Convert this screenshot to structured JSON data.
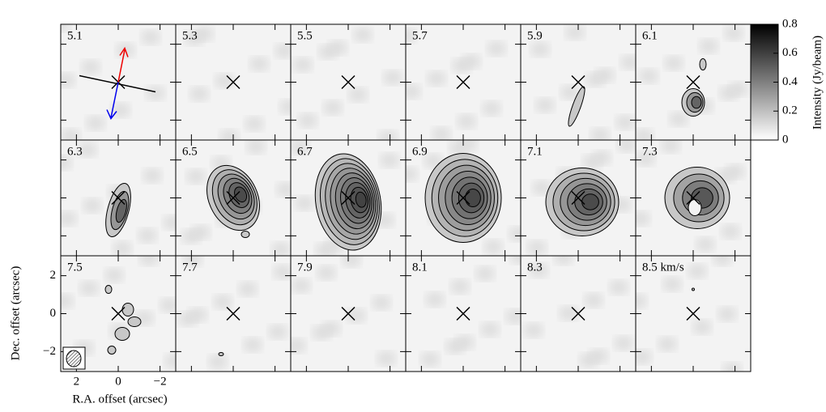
{
  "chart_data": {
    "type": "channel-map",
    "categories": [
      "5.1",
      "5.3",
      "5.5",
      "5.7",
      "5.9",
      "6.1",
      "6.3",
      "6.5",
      "6.7",
      "6.9",
      "7.1",
      "7.3",
      "7.5",
      "7.7",
      "7.9",
      "8.1",
      "8.3",
      "8.5 km/s"
    ],
    "xlabel": "R.A. offset (arcsec)",
    "ylabel": "Dec. offset (arcsec)",
    "xlim": [
      2.75,
      -2.75
    ],
    "xticks": [
      2,
      0,
      {
        "value": -2,
        "label": "−2"
      }
    ],
    "ylim": [
      -3.05,
      3.05
    ],
    "yticks": [
      2,
      0,
      {
        "value": -2,
        "label": "−2"
      }
    ],
    "colorbar": {
      "label": "Intensity (Jy/beam)",
      "ylim": [
        0,
        0.8
      ],
      "yticks": [
        0,
        0.2,
        0.4,
        0.6,
        0.8
      ]
    }
  }
}
